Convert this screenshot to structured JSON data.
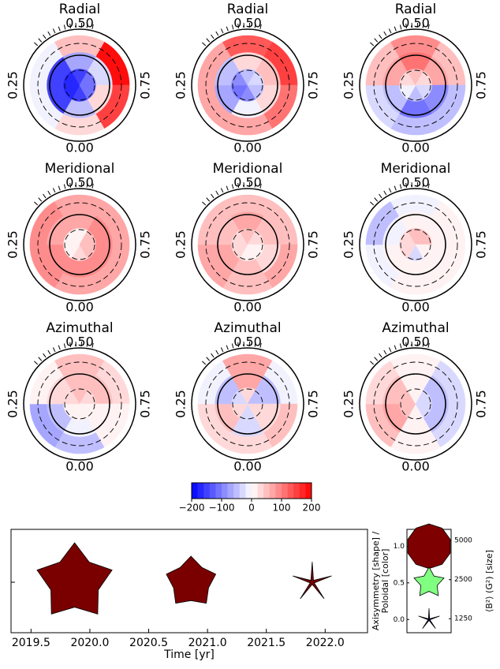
{
  "chart_data": [
    {
      "type": "polar",
      "title": "Radial",
      "labels": [
        "0.50",
        "0.25",
        "0.75",
        "0.00"
      ],
      "rings": [
        [
          -150,
          -180,
          -180,
          -150,
          -120,
          -120
        ],
        [
          -60,
          -150,
          -150,
          -80,
          -40,
          20
        ],
        [
          20,
          -20,
          -20,
          40,
          180,
          150
        ]
      ]
    },
    {
      "type": "polar",
      "title": "Radial",
      "labels": [
        "0.50",
        "0.25",
        "0.75",
        "0.00"
      ],
      "rings": [
        [
          -100,
          -120,
          -100,
          -60,
          -40,
          -60
        ],
        [
          -20,
          -80,
          -60,
          20,
          40,
          20
        ],
        [
          60,
          60,
          60,
          120,
          140,
          100
        ]
      ]
    },
    {
      "type": "polar",
      "title": "Radial",
      "labels": [
        "0.50",
        "0.25",
        "0.75",
        "0.00"
      ],
      "rings": [
        [
          -60,
          -20,
          20,
          40,
          20,
          -40
        ],
        [
          -120,
          -60,
          60,
          100,
          60,
          -100
        ],
        [
          -60,
          -40,
          40,
          80,
          40,
          -60
        ]
      ]
    },
    {
      "type": "polar",
      "title": "Meridional",
      "labels": [
        "0.50",
        "0.25",
        "0.75",
        "0.00"
      ],
      "rings": [
        [
          20,
          0,
          0,
          0,
          40,
          40
        ],
        [
          80,
          80,
          60,
          60,
          80,
          80
        ],
        [
          60,
          80,
          80,
          60,
          60,
          70
        ]
      ]
    },
    {
      "type": "polar",
      "title": "Meridional",
      "labels": [
        "0.50",
        "0.25",
        "0.75",
        "0.00"
      ],
      "rings": [
        [
          0,
          20,
          30,
          40,
          20,
          0
        ],
        [
          40,
          60,
          40,
          60,
          40,
          20
        ],
        [
          40,
          60,
          40,
          40,
          50,
          60
        ]
      ]
    },
    {
      "type": "polar",
      "title": "Meridional",
      "labels": [
        "0.50",
        "0.25",
        "0.75",
        "0.00"
      ],
      "rings": [
        [
          -30,
          20,
          30,
          40,
          40,
          0
        ],
        [
          0,
          0,
          -20,
          0,
          0,
          0
        ],
        [
          0,
          -20,
          -60,
          -20,
          0,
          0
        ]
      ]
    },
    {
      "type": "polar",
      "title": "Azimuthal",
      "labels": [
        "0.50",
        "0.25",
        "0.75",
        "0.00"
      ],
      "rings": [
        [
          0,
          0,
          20,
          40,
          20,
          0
        ],
        [
          -20,
          -60,
          20,
          50,
          40,
          0
        ],
        [
          -60,
          -80,
          0,
          40,
          20,
          0
        ]
      ]
    },
    {
      "type": "polar",
      "title": "Azimuthal",
      "labels": [
        "0.50",
        "0.25",
        "0.75",
        "0.00"
      ],
      "rings": [
        [
          -40,
          20,
          -40,
          30,
          -50,
          20
        ],
        [
          -30,
          40,
          -60,
          60,
          -60,
          30
        ],
        [
          20,
          30,
          -20,
          60,
          -20,
          40
        ]
      ]
    },
    {
      "type": "polar",
      "title": "Azimuthal",
      "labels": [
        "0.50",
        "0.25",
        "0.75",
        "0.00"
      ],
      "rings": [
        [
          0,
          40,
          40,
          0,
          -40,
          -40
        ],
        [
          0,
          60,
          40,
          0,
          -50,
          -50
        ],
        [
          0,
          50,
          30,
          0,
          -40,
          -40
        ]
      ]
    },
    {
      "type": "colorbar",
      "clim": [
        -200,
        200
      ],
      "ticks": [
        {
          "value": -200,
          "label": "−200"
        },
        {
          "value": -100,
          "label": "−100"
        },
        0,
        100,
        200
      ]
    },
    {
      "type": "scatter",
      "x_label": "Time [yr]",
      "y_label": [
        "Axisymmetry [shape] /",
        "Poloidal [color]"
      ],
      "xlim": [
        2019.33,
        2022.36
      ],
      "xticks": [
        {
          "value": 2019.5,
          "label": "2019.5"
        },
        {
          "value": 2020.0,
          "label": "2020.0"
        },
        {
          "value": 2020.5,
          "label": "2020.5"
        },
        {
          "value": 2021.0,
          "label": "2021.0"
        },
        {
          "value": 2021.5,
          "label": "2021.5"
        },
        {
          "value": 2022.0,
          "label": "2022.0"
        }
      ],
      "x": [
        2019.87,
        2020.86,
        2021.89
      ],
      "axisymmetry": [
        0.6,
        0.68,
        0.03
      ],
      "size": [
        15600,
        6800,
        4200
      ],
      "colors": [
        "#7a0000",
        "#7a0000",
        "#7a0000"
      ]
    },
    {
      "type": "key",
      "y2_label": "⟨B²⟩ (G²) [size]",
      "ylim": [
        -0.18,
        1.23
      ],
      "yticks": [
        {
          "value": 0,
          "label": "0.0"
        },
        {
          "value": 0.5,
          "label": "0.5"
        },
        {
          "value": 1,
          "label": "1.0"
        }
      ],
      "y2lim": [
        975,
        6099
      ],
      "y2_log": true,
      "y2ticks": [
        1250,
        2500,
        5000
      ],
      "axisymmetry": [
        1,
        0.5,
        0
      ],
      "size": [
        5000,
        2500,
        1250
      ],
      "colors": [
        "#7f0000",
        "#80ff80",
        "#00003a"
      ]
    }
  ]
}
